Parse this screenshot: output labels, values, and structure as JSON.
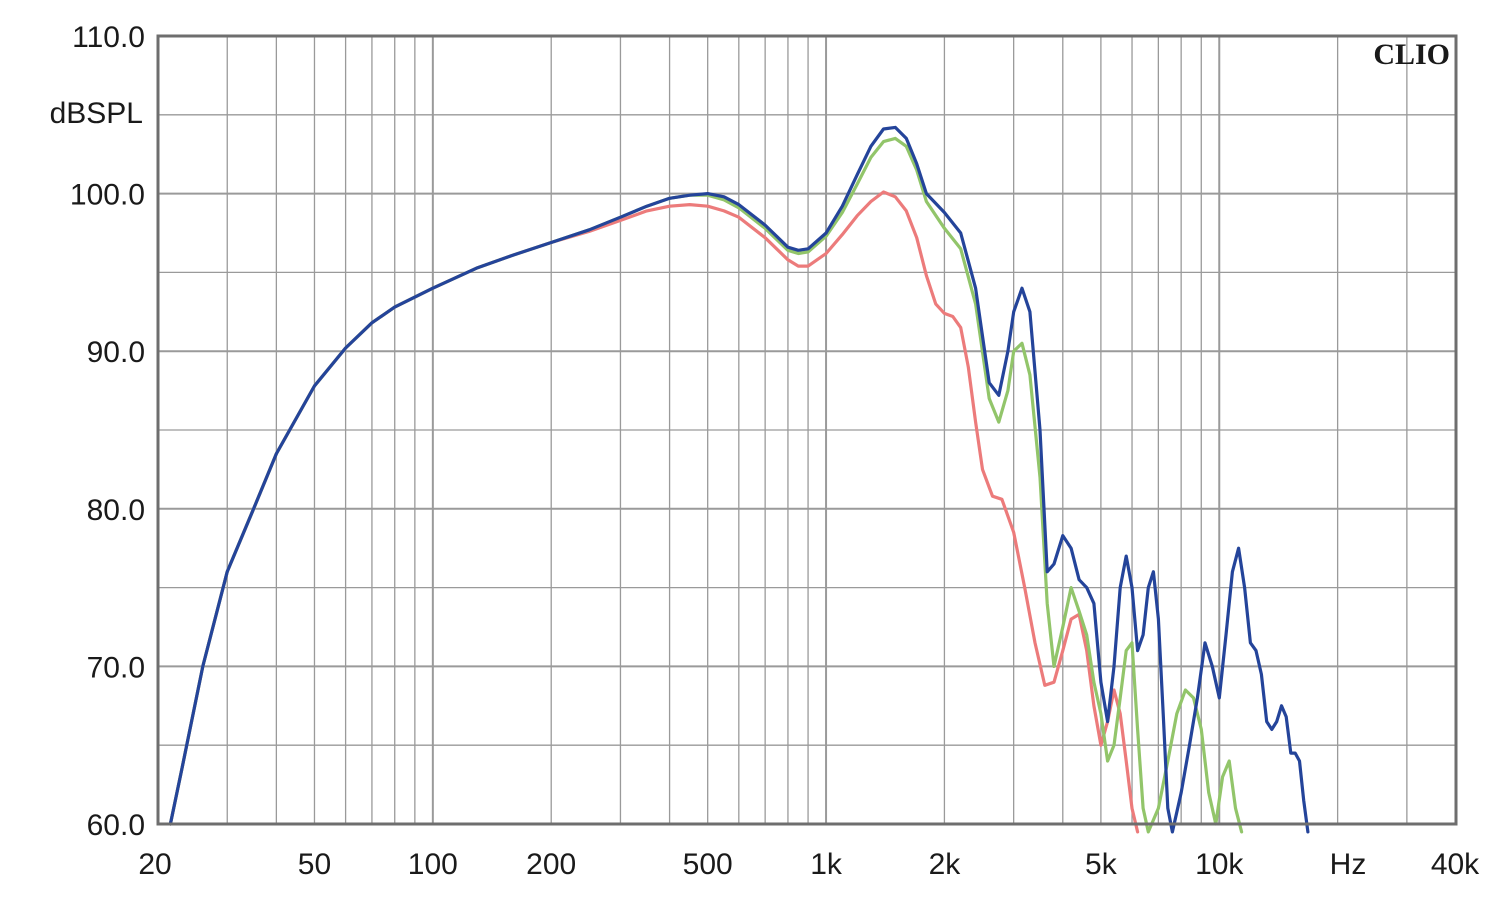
{
  "chart_data": {
    "type": "line",
    "title": "",
    "brand": "CLIO",
    "xlabel": "Hz",
    "ylabel": "dBSPL",
    "xscale": "log",
    "xlim": [
      20,
      40000
    ],
    "ylim": [
      60,
      110
    ],
    "x_ticks": [
      {
        "value": 20,
        "label": "20"
      },
      {
        "value": 50,
        "label": "50"
      },
      {
        "value": 100,
        "label": "100"
      },
      {
        "value": 200,
        "label": "200"
      },
      {
        "value": 500,
        "label": "500"
      },
      {
        "value": 1000,
        "label": "1k"
      },
      {
        "value": 2000,
        "label": "2k"
      },
      {
        "value": 5000,
        "label": "5k"
      },
      {
        "value": 10000,
        "label": "10k"
      },
      {
        "value": 40000,
        "label": "40k"
      }
    ],
    "y_ticks": [
      {
        "value": 110,
        "label": "110.0"
      },
      {
        "value": 100,
        "label": "100.0"
      },
      {
        "value": 90,
        "label": "90.0"
      },
      {
        "value": 80,
        "label": "80.0"
      },
      {
        "value": 70,
        "label": "70.0"
      },
      {
        "value": 60,
        "label": "60.0"
      }
    ],
    "grid": true,
    "colors": {
      "grid": "#9a9a9a",
      "frame": "#6e6e6e",
      "background": "#ffffff"
    },
    "series": [
      {
        "color": "#ec7b7b",
        "points": [
          [
            21.5,
            60
          ],
          [
            23,
            63.5
          ],
          [
            26,
            70
          ],
          [
            30,
            76
          ],
          [
            35,
            80
          ],
          [
            40,
            83.5
          ],
          [
            50,
            87.8
          ],
          [
            60,
            90.2
          ],
          [
            70,
            91.8
          ],
          [
            80,
            92.8
          ],
          [
            100,
            94
          ],
          [
            130,
            95.3
          ],
          [
            160,
            96.1
          ],
          [
            200,
            96.9
          ],
          [
            250,
            97.6
          ],
          [
            300,
            98.3
          ],
          [
            350,
            98.9
          ],
          [
            400,
            99.2
          ],
          [
            450,
            99.3
          ],
          [
            500,
            99.2
          ],
          [
            550,
            98.9
          ],
          [
            600,
            98.5
          ],
          [
            700,
            97.2
          ],
          [
            800,
            95.8
          ],
          [
            850,
            95.4
          ],
          [
            900,
            95.4
          ],
          [
            1000,
            96.2
          ],
          [
            1100,
            97.4
          ],
          [
            1200,
            98.6
          ],
          [
            1300,
            99.5
          ],
          [
            1400,
            100.1
          ],
          [
            1500,
            99.8
          ],
          [
            1600,
            98.9
          ],
          [
            1700,
            97.2
          ],
          [
            1800,
            94.8
          ],
          [
            1900,
            93
          ],
          [
            2000,
            92.4
          ],
          [
            2100,
            92.2
          ],
          [
            2200,
            91.5
          ],
          [
            2300,
            89
          ],
          [
            2400,
            85.5
          ],
          [
            2500,
            82.5
          ],
          [
            2650,
            80.8
          ],
          [
            2800,
            80.6
          ],
          [
            3000,
            78.5
          ],
          [
            3200,
            75
          ],
          [
            3400,
            71.5
          ],
          [
            3600,
            68.8
          ],
          [
            3800,
            69
          ],
          [
            4000,
            71
          ],
          [
            4200,
            73
          ],
          [
            4400,
            73.3
          ],
          [
            4600,
            71
          ],
          [
            4800,
            67.5
          ],
          [
            5000,
            65
          ],
          [
            5200,
            66.5
          ],
          [
            5400,
            68.5
          ],
          [
            5600,
            67
          ],
          [
            5800,
            64
          ],
          [
            6000,
            61
          ],
          [
            6200,
            59.5
          ]
        ]
      },
      {
        "color": "#92c56a",
        "points": [
          [
            21.5,
            60
          ],
          [
            23,
            63.5
          ],
          [
            26,
            70
          ],
          [
            30,
            76
          ],
          [
            35,
            80
          ],
          [
            40,
            83.5
          ],
          [
            50,
            87.8
          ],
          [
            60,
            90.2
          ],
          [
            70,
            91.8
          ],
          [
            80,
            92.8
          ],
          [
            100,
            94
          ],
          [
            130,
            95.3
          ],
          [
            160,
            96.1
          ],
          [
            200,
            96.9
          ],
          [
            250,
            97.7
          ],
          [
            300,
            98.5
          ],
          [
            350,
            99.2
          ],
          [
            400,
            99.7
          ],
          [
            450,
            99.9
          ],
          [
            500,
            99.9
          ],
          [
            550,
            99.6
          ],
          [
            600,
            99.1
          ],
          [
            700,
            97.8
          ],
          [
            800,
            96.4
          ],
          [
            850,
            96.2
          ],
          [
            900,
            96.3
          ],
          [
            1000,
            97.3
          ],
          [
            1100,
            98.8
          ],
          [
            1200,
            100.6
          ],
          [
            1300,
            102.3
          ],
          [
            1400,
            103.3
          ],
          [
            1500,
            103.5
          ],
          [
            1600,
            103
          ],
          [
            1700,
            101.5
          ],
          [
            1800,
            99.5
          ],
          [
            2000,
            97.8
          ],
          [
            2200,
            96.5
          ],
          [
            2400,
            93
          ],
          [
            2600,
            87
          ],
          [
            2750,
            85.5
          ],
          [
            2900,
            87.5
          ],
          [
            3000,
            90
          ],
          [
            3150,
            90.5
          ],
          [
            3300,
            88.5
          ],
          [
            3500,
            82
          ],
          [
            3650,
            74
          ],
          [
            3800,
            70
          ],
          [
            4000,
            72.5
          ],
          [
            4200,
            75
          ],
          [
            4400,
            73.5
          ],
          [
            4600,
            72
          ],
          [
            4800,
            69
          ],
          [
            5000,
            67
          ],
          [
            5200,
            64
          ],
          [
            5400,
            65
          ],
          [
            5600,
            68
          ],
          [
            5800,
            71
          ],
          [
            6000,
            71.5
          ],
          [
            6200,
            66
          ],
          [
            6400,
            61
          ],
          [
            6600,
            59.5
          ],
          [
            7000,
            61
          ],
          [
            7400,
            64
          ],
          [
            7800,
            67
          ],
          [
            8200,
            68.5
          ],
          [
            8600,
            68
          ],
          [
            9000,
            66
          ],
          [
            9400,
            62
          ],
          [
            9800,
            60
          ],
          [
            10200,
            63
          ],
          [
            10600,
            64
          ],
          [
            11000,
            61
          ],
          [
            11400,
            59.5
          ]
        ]
      },
      {
        "color": "#24449a",
        "points": [
          [
            21.5,
            60
          ],
          [
            23,
            63.5
          ],
          [
            26,
            70
          ],
          [
            30,
            76
          ],
          [
            35,
            80
          ],
          [
            40,
            83.5
          ],
          [
            50,
            87.8
          ],
          [
            60,
            90.2
          ],
          [
            70,
            91.8
          ],
          [
            80,
            92.8
          ],
          [
            100,
            94
          ],
          [
            130,
            95.3
          ],
          [
            160,
            96.1
          ],
          [
            200,
            96.9
          ],
          [
            250,
            97.7
          ],
          [
            300,
            98.5
          ],
          [
            350,
            99.2
          ],
          [
            400,
            99.7
          ],
          [
            450,
            99.9
          ],
          [
            500,
            100
          ],
          [
            550,
            99.8
          ],
          [
            600,
            99.3
          ],
          [
            700,
            98
          ],
          [
            800,
            96.6
          ],
          [
            850,
            96.4
          ],
          [
            900,
            96.5
          ],
          [
            1000,
            97.5
          ],
          [
            1100,
            99.2
          ],
          [
            1200,
            101.2
          ],
          [
            1300,
            103
          ],
          [
            1400,
            104.1
          ],
          [
            1500,
            104.2
          ],
          [
            1600,
            103.5
          ],
          [
            1700,
            101.9
          ],
          [
            1800,
            100
          ],
          [
            2000,
            98.8
          ],
          [
            2200,
            97.5
          ],
          [
            2400,
            94
          ],
          [
            2600,
            88
          ],
          [
            2750,
            87.2
          ],
          [
            2900,
            90
          ],
          [
            3000,
            92.5
          ],
          [
            3150,
            94
          ],
          [
            3300,
            92.5
          ],
          [
            3500,
            85
          ],
          [
            3650,
            76
          ],
          [
            3800,
            76.5
          ],
          [
            4000,
            78.3
          ],
          [
            4200,
            77.5
          ],
          [
            4400,
            75.5
          ],
          [
            4600,
            75
          ],
          [
            4800,
            74
          ],
          [
            5000,
            69
          ],
          [
            5200,
            66.5
          ],
          [
            5400,
            70
          ],
          [
            5600,
            75
          ],
          [
            5800,
            77
          ],
          [
            6000,
            75
          ],
          [
            6200,
            71
          ],
          [
            6400,
            72
          ],
          [
            6600,
            75
          ],
          [
            6800,
            76
          ],
          [
            7000,
            73
          ],
          [
            7200,
            67
          ],
          [
            7400,
            61
          ],
          [
            7600,
            59.5
          ],
          [
            8000,
            62
          ],
          [
            8400,
            65
          ],
          [
            8800,
            68
          ],
          [
            9200,
            71.5
          ],
          [
            9600,
            70
          ],
          [
            10000,
            68
          ],
          [
            10400,
            72
          ],
          [
            10800,
            76
          ],
          [
            11200,
            77.5
          ],
          [
            11600,
            75
          ],
          [
            12000,
            71.5
          ],
          [
            12400,
            71
          ],
          [
            12800,
            69.5
          ],
          [
            13200,
            66.5
          ],
          [
            13600,
            66
          ],
          [
            14000,
            66.5
          ],
          [
            14400,
            67.5
          ],
          [
            14800,
            66.8
          ],
          [
            15200,
            64.5
          ],
          [
            15600,
            64.5
          ],
          [
            16000,
            64
          ],
          [
            16400,
            61.5
          ],
          [
            16800,
            59.5
          ]
        ]
      }
    ]
  }
}
